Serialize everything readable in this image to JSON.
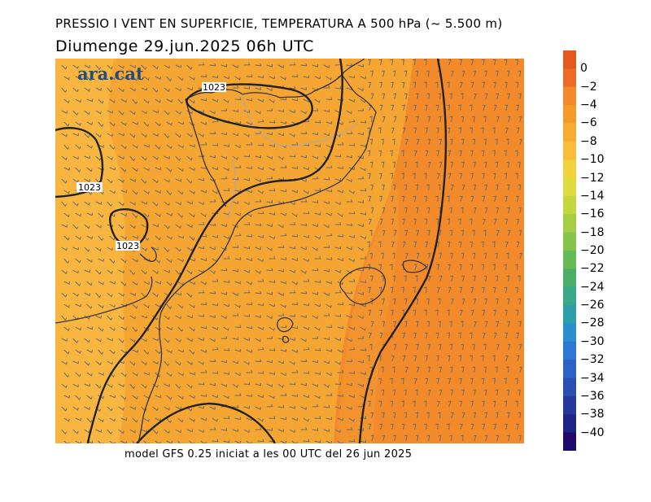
{
  "header": {
    "title": "PRESSIO I VENT EN SUPERFICIE, TEMPERATURA A 500 hPa (~ 5.500 m)",
    "subtitle": "Diumenge  29.jun.2025 06h UTC"
  },
  "footer": {
    "model_text": "model GFS 0.25 iniciat a les 00 UTC del 26 jun 2025"
  },
  "logo": {
    "text": "ara.cat"
  },
  "map": {
    "isobar_labels": [
      "1023",
      "1023",
      "1023"
    ],
    "colors": {
      "west_band": "#f8b640",
      "central": "#f5a531",
      "east": "#f38a2a",
      "isobar": "#222222",
      "coast": "#333333",
      "wind_barb": "#6b6b6b"
    }
  },
  "legend": {
    "labels": [
      "0",
      "−2",
      "−4",
      "−6",
      "−8",
      "−10",
      "−12",
      "−14",
      "−16",
      "−18",
      "−20",
      "−22",
      "−24",
      "−26",
      "−28",
      "−30",
      "−32",
      "−34",
      "−36",
      "−38",
      "−40"
    ],
    "colors": [
      "#e25a1f",
      "#ed6c25",
      "#f38a2a",
      "#f59a2e",
      "#f6ab35",
      "#f8bd3a",
      "#f1d13c",
      "#dedb3f",
      "#c4d63f",
      "#a5cd45",
      "#86c34b",
      "#66b954",
      "#4dae6c",
      "#39a889",
      "#2e9ea8",
      "#2a8fcc",
      "#2b79d3",
      "#2d63c4",
      "#2b4fb0",
      "#26389a",
      "#1f2384",
      "#200a6a"
    ]
  }
}
